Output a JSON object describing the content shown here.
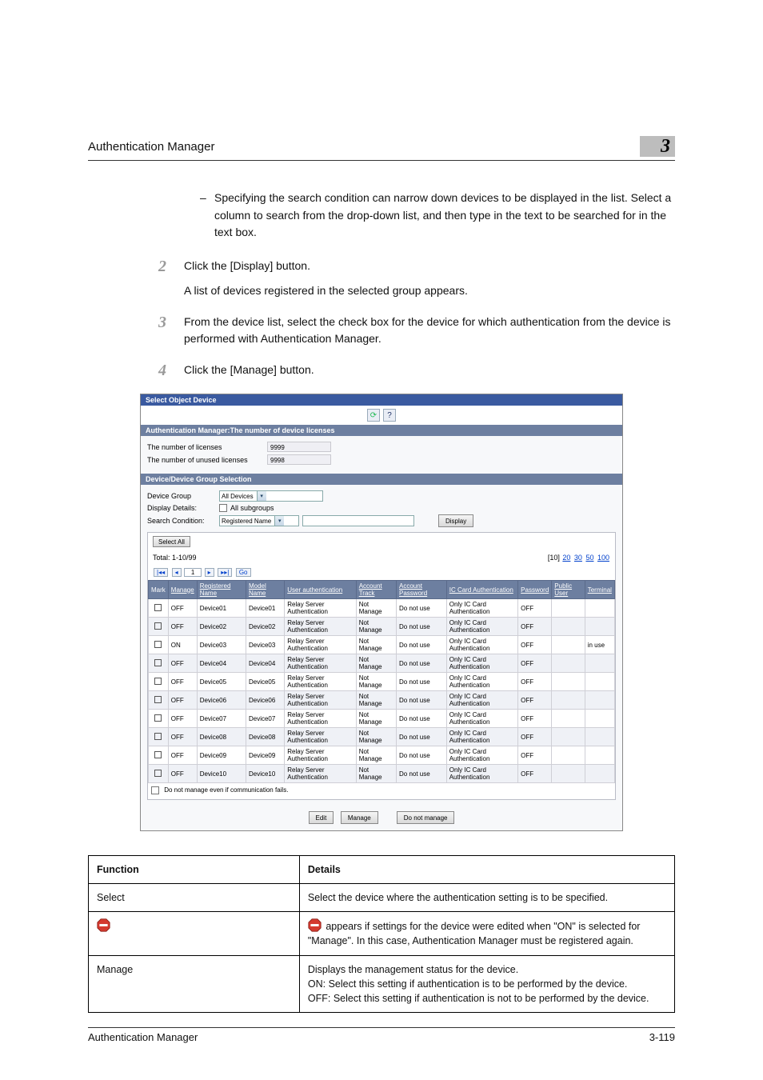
{
  "header": {
    "title": "Authentication Manager",
    "chapter": "3"
  },
  "intro_dash": "Specifying the search condition can narrow down devices to be displayed in the list. Select a column to search from the drop-down list, and then type in the text to be searched for in the text box.",
  "steps": {
    "s2": {
      "num": "2",
      "line": "Click the [Display] button.",
      "note": "A list of devices registered in the selected group appears."
    },
    "s3": {
      "num": "3",
      "line": "From the device list, select the check box for the device for which authentication from the device is performed with Authentication Manager."
    },
    "s4": {
      "num": "4",
      "line": "Click the [Manage] button."
    }
  },
  "shot": {
    "title": "Select Object Device",
    "lic_section": "Authentication Manager:The number of device licenses",
    "lic_total_label": "The number of licenses",
    "lic_total_val": "9999",
    "lic_unused_label": "The number of unused licenses",
    "lic_unused_val": "9998",
    "grp_section": "Device/Device Group Selection",
    "grp_label": "Device Group",
    "grp_val": "All Devices",
    "disp_details_label": "Display Details:",
    "disp_details_opt": "All subgroups",
    "search_label": "Search Condition:",
    "search_sel": "Registered Name",
    "display_btn": "Display",
    "select_all": "Select All",
    "total_label": "Total:",
    "total_range": "1-10/99",
    "pager_seq": [
      "[10]",
      "20",
      "30",
      "50",
      "100"
    ],
    "go": "Go",
    "cols": [
      "Mark",
      "Manage",
      "Registered Name",
      "Model Name",
      "User authentication",
      "Account Track",
      "Account Password",
      "IC Card Authentication",
      "Password",
      "Public User",
      "Terminal"
    ],
    "rows": [
      {
        "manage": "OFF",
        "reg": "Device01",
        "model": "Device01",
        "ua": "Relay Server Authentication",
        "at": "Not Manage",
        "ap": "Do not use",
        "ic": "Only IC Card Authentication",
        "pw": "OFF",
        "term": ""
      },
      {
        "manage": "OFF",
        "reg": "Device02",
        "model": "Device02",
        "ua": "Relay Server Authentication",
        "at": "Not Manage",
        "ap": "Do not use",
        "ic": "Only IC Card Authentication",
        "pw": "OFF",
        "term": ""
      },
      {
        "manage": "ON",
        "reg": "Device03",
        "model": "Device03",
        "ua": "Relay Server Authentication",
        "at": "Not Manage",
        "ap": "Do not use",
        "ic": "Only IC Card Authentication",
        "pw": "OFF",
        "term": "in use"
      },
      {
        "manage": "OFF",
        "reg": "Device04",
        "model": "Device04",
        "ua": "Relay Server Authentication",
        "at": "Not Manage",
        "ap": "Do not use",
        "ic": "Only IC Card Authentication",
        "pw": "OFF",
        "term": ""
      },
      {
        "manage": "OFF",
        "reg": "Device05",
        "model": "Device05",
        "ua": "Relay Server Authentication",
        "at": "Not Manage",
        "ap": "Do not use",
        "ic": "Only IC Card Authentication",
        "pw": "OFF",
        "term": ""
      },
      {
        "manage": "OFF",
        "reg": "Device06",
        "model": "Device06",
        "ua": "Relay Server Authentication",
        "at": "Not Manage",
        "ap": "Do not use",
        "ic": "Only IC Card Authentication",
        "pw": "OFF",
        "term": ""
      },
      {
        "manage": "OFF",
        "reg": "Device07",
        "model": "Device07",
        "ua": "Relay Server Authentication",
        "at": "Not Manage",
        "ap": "Do not use",
        "ic": "Only IC Card Authentication",
        "pw": "OFF",
        "term": ""
      },
      {
        "manage": "OFF",
        "reg": "Device08",
        "model": "Device08",
        "ua": "Relay Server Authentication",
        "at": "Not Manage",
        "ap": "Do not use",
        "ic": "Only IC Card Authentication",
        "pw": "OFF",
        "term": ""
      },
      {
        "manage": "OFF",
        "reg": "Device09",
        "model": "Device09",
        "ua": "Relay Server Authentication",
        "at": "Not Manage",
        "ap": "Do not use",
        "ic": "Only IC Card Authentication",
        "pw": "OFF",
        "term": ""
      },
      {
        "manage": "OFF",
        "reg": "Device10",
        "model": "Device10",
        "ua": "Relay Server Authentication",
        "at": "Not Manage",
        "ap": "Do not use",
        "ic": "Only IC Card Authentication",
        "pw": "OFF",
        "term": ""
      }
    ],
    "fail_note": "Do not manage even if communication fails.",
    "btn_edit": "Edit",
    "btn_manage": "Manage",
    "btn_donot": "Do not manage"
  },
  "desc": {
    "h_func": "Function",
    "h_det": "Details",
    "r1f": "Select",
    "r1d": "Select the device where the authentication setting is to be specified.",
    "r2d_a": "appears if settings for the device were edited when \"ON\" is selected for \"Manage\". In this case, Authentication Manager must be registered again.",
    "r3f": "Manage",
    "r3d": "Displays the management status for the device.\nON: Select this setting if authentication is to be performed by the device.\nOFF: Select this setting if authentication is not to be performed by the device."
  },
  "footer": {
    "left": "Authentication Manager",
    "right": "3-119"
  }
}
